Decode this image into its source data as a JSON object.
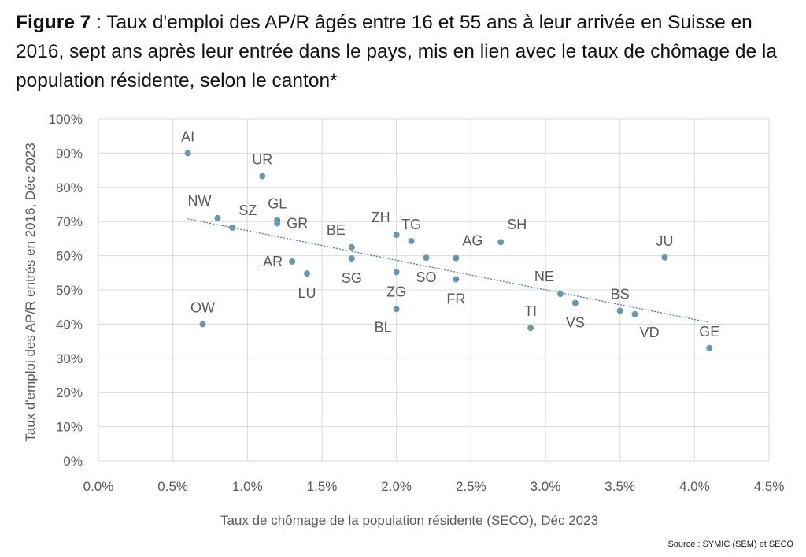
{
  "title": {
    "prefix": "Figure 7",
    "text": " : Taux d'emploi des AP/R âgés entre 16 et 55 ans à leur arrivée en Suisse en 2016, sept ans après leur entrée dans le pays, mis en lien avec le taux de chômage de la population résidente, selon le canton*"
  },
  "source": "Source : SYMIC (SEM) et SECO",
  "chart_data": {
    "type": "scatter",
    "xlabel": "Taux de chômage de la population résidente (SECO), Déc 2023",
    "ylabel": "Taux d'emploi des AP/R entrés en 2016, Déc 2023",
    "xlim": [
      0,
      4.5
    ],
    "ylim": [
      0,
      100
    ],
    "x_ticks": [
      0,
      0.5,
      1.0,
      1.5,
      2.0,
      2.5,
      3.0,
      3.5,
      4.0,
      4.5
    ],
    "x_tick_labels": [
      "0.0%",
      "0.5%",
      "1.0%",
      "1.5%",
      "2.0%",
      "2.5%",
      "3.0%",
      "3.5%",
      "4.0%",
      "4.5%"
    ],
    "y_ticks": [
      0,
      10,
      20,
      30,
      40,
      50,
      60,
      70,
      80,
      90,
      100
    ],
    "y_tick_labels": [
      "0%",
      "10%",
      "20%",
      "30%",
      "40%",
      "50%",
      "60%",
      "70%",
      "80%",
      "90%",
      "100%"
    ],
    "grid": true,
    "point_color": "#6b97ad",
    "trendline": {
      "color": "#4f7f95",
      "style": "dotted",
      "x": [
        0.6,
        4.1
      ],
      "y": [
        70.8,
        40.5
      ]
    },
    "points": [
      {
        "label": "AI",
        "x": 0.6,
        "y": 90.0,
        "pos": "above"
      },
      {
        "label": "OW",
        "x": 0.7,
        "y": 40.0,
        "pos": "above"
      },
      {
        "label": "NW",
        "x": 0.8,
        "y": 71.0,
        "pos": "above-left"
      },
      {
        "label": "SZ",
        "x": 0.9,
        "y": 68.2,
        "pos": "above-right"
      },
      {
        "label": "UR",
        "x": 1.1,
        "y": 83.3,
        "pos": "above"
      },
      {
        "label": "GL",
        "x": 1.2,
        "y": 70.4,
        "pos": "above"
      },
      {
        "label": "GR",
        "x": 1.2,
        "y": 69.5,
        "pos": "right"
      },
      {
        "label": "AR",
        "x": 1.3,
        "y": 58.3,
        "pos": "left"
      },
      {
        "label": "LU",
        "x": 1.4,
        "y": 54.8,
        "pos": "below"
      },
      {
        "label": "BE",
        "x": 1.7,
        "y": 62.5,
        "pos": "above-left"
      },
      {
        "label": "SG",
        "x": 1.7,
        "y": 59.2,
        "pos": "below"
      },
      {
        "label": "ZH",
        "x": 2.0,
        "y": 66.1,
        "pos": "above-left"
      },
      {
        "label": "ZG",
        "x": 2.0,
        "y": 55.2,
        "pos": "below"
      },
      {
        "label": "BL",
        "x": 2.0,
        "y": 44.4,
        "pos": "below-left"
      },
      {
        "label": "TG",
        "x": 2.1,
        "y": 64.3,
        "pos": "above"
      },
      {
        "label": "SO",
        "x": 2.2,
        "y": 59.4,
        "pos": "below"
      },
      {
        "label": "AG",
        "x": 2.4,
        "y": 59.3,
        "pos": "above-right"
      },
      {
        "label": "FR",
        "x": 2.4,
        "y": 53.1,
        "pos": "below"
      },
      {
        "label": "SH",
        "x": 2.7,
        "y": 64.0,
        "pos": "above-right"
      },
      {
        "label": "TI",
        "x": 2.9,
        "y": 38.9,
        "pos": "above"
      },
      {
        "label": "NE",
        "x": 3.1,
        "y": 48.8,
        "pos": "above-left"
      },
      {
        "label": "VS",
        "x": 3.2,
        "y": 46.2,
        "pos": "below"
      },
      {
        "label": "BS",
        "x": 3.5,
        "y": 43.9,
        "pos": "above"
      },
      {
        "label": "VD",
        "x": 3.6,
        "y": 42.9,
        "pos": "below-right"
      },
      {
        "label": "JU",
        "x": 3.8,
        "y": 59.5,
        "pos": "above"
      },
      {
        "label": "GE",
        "x": 4.1,
        "y": 33.0,
        "pos": "above"
      }
    ]
  }
}
